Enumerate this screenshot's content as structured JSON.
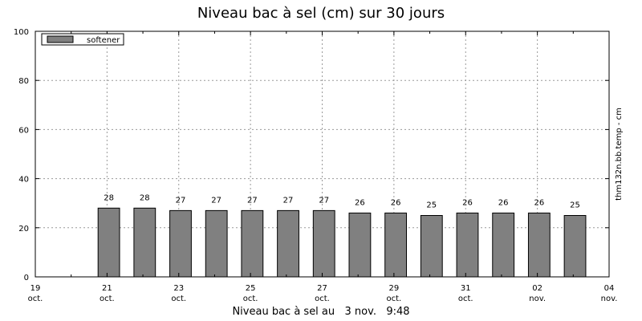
{
  "chart_data": {
    "type": "bar",
    "title": "Niveau bac à sel (cm) sur 30 jours",
    "footer": "Niveau bac à sel au   3 nov.   9:48",
    "ylabel_right": "thm132n.bb.temp - cm",
    "ylim": [
      0,
      100
    ],
    "yticks": [
      "0",
      "20",
      "40",
      "60",
      "80",
      "100"
    ],
    "xlim": [
      "2023-10-19",
      "2023-11-04"
    ],
    "xticks": [
      {
        "date": "2023-10-19",
        "day": "19",
        "month": "oct."
      },
      {
        "date": "2023-10-21",
        "day": "21",
        "month": "oct."
      },
      {
        "date": "2023-10-23",
        "day": "23",
        "month": "oct."
      },
      {
        "date": "2023-10-25",
        "day": "25",
        "month": "oct."
      },
      {
        "date": "2023-10-27",
        "day": "27",
        "month": "oct."
      },
      {
        "date": "2023-10-29",
        "day": "29",
        "month": "oct."
      },
      {
        "date": "2023-10-31",
        "day": "31",
        "month": "oct."
      },
      {
        "date": "2023-11-02",
        "day": "02",
        "month": "nov."
      },
      {
        "date": "2023-11-04",
        "day": "04",
        "month": "nov."
      }
    ],
    "grid": true,
    "legend_position": "top-left",
    "series": [
      {
        "name": "softener",
        "color": "#808080",
        "x": [
          "2023-10-21",
          "2023-10-22",
          "2023-10-23",
          "2023-10-24",
          "2023-10-25",
          "2023-10-26",
          "2023-10-27",
          "2023-10-28",
          "2023-10-29",
          "2023-10-30",
          "2023-10-31",
          "2023-11-01",
          "2023-11-02",
          "2023-11-03"
        ],
        "values": [
          28,
          28,
          27,
          27,
          27,
          27,
          27,
          26,
          26,
          25,
          26,
          26,
          26,
          25
        ]
      }
    ]
  }
}
